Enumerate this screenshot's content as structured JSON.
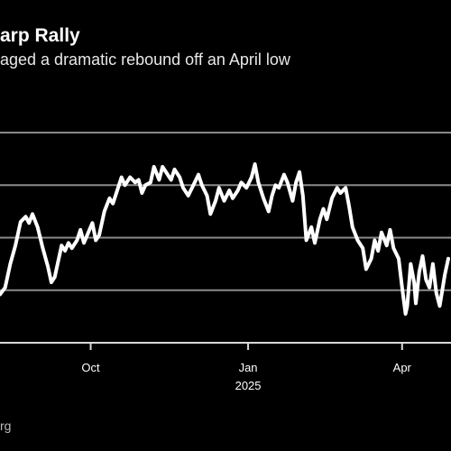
{
  "chart_data": {
    "type": "line",
    "title": "arp Rally",
    "subtitle": "aged a dramatic rebound off an April low",
    "xlabel": "",
    "ylabel": "",
    "grid": true,
    "legend": "none",
    "colors": {
      "background": "#000000",
      "line": "#ffffff",
      "grid": "#8a8a8a"
    },
    "ylim": [
      0,
      4
    ],
    "x_ticks": [
      {
        "label": "Oct",
        "sublabel": "",
        "date": "2024-10-01"
      },
      {
        "label": "Jan",
        "sublabel": "2025",
        "date": "2025-01-01"
      },
      {
        "label": "Apr",
        "sublabel": "",
        "date": "2025-04-01"
      }
    ],
    "xlim": [
      "2024-08-09",
      "2025-04-28"
    ],
    "series": [
      {
        "values": [
          [
            "2024-08-09",
            0.92
          ],
          [
            "2024-08-12",
            1.05
          ],
          [
            "2024-08-15",
            1.5
          ],
          [
            "2024-08-18",
            1.85
          ],
          [
            "2024-08-21",
            2.3
          ],
          [
            "2024-08-24",
            2.4
          ],
          [
            "2024-08-26",
            2.28
          ],
          [
            "2024-08-28",
            2.45
          ],
          [
            "2024-08-31",
            2.2
          ],
          [
            "2024-09-03",
            1.8
          ],
          [
            "2024-09-06",
            1.45
          ],
          [
            "2024-09-08",
            1.15
          ],
          [
            "2024-09-10",
            1.25
          ],
          [
            "2024-09-12",
            1.55
          ],
          [
            "2024-09-14",
            1.85
          ],
          [
            "2024-09-16",
            1.75
          ],
          [
            "2024-09-18",
            1.9
          ],
          [
            "2024-09-20",
            1.8
          ],
          [
            "2024-09-23",
            1.95
          ],
          [
            "2024-09-25",
            2.15
          ],
          [
            "2024-09-27",
            1.9
          ],
          [
            "2024-09-29",
            2.05
          ],
          [
            "2024-10-02",
            2.28
          ],
          [
            "2024-10-04",
            1.95
          ],
          [
            "2024-10-06",
            2.05
          ],
          [
            "2024-10-09",
            2.5
          ],
          [
            "2024-10-12",
            2.75
          ],
          [
            "2024-10-14",
            2.65
          ],
          [
            "2024-10-17",
            2.95
          ],
          [
            "2024-10-19",
            3.15
          ],
          [
            "2024-10-21",
            3.0
          ],
          [
            "2024-10-24",
            3.15
          ],
          [
            "2024-10-27",
            3.05
          ],
          [
            "2024-10-29",
            3.1
          ],
          [
            "2024-10-31",
            2.85
          ],
          [
            "2024-11-02",
            3.0
          ],
          [
            "2024-11-05",
            3.05
          ],
          [
            "2024-11-07",
            3.35
          ],
          [
            "2024-11-10",
            3.1
          ],
          [
            "2024-11-12",
            3.35
          ],
          [
            "2024-11-14",
            3.25
          ],
          [
            "2024-11-17",
            3.1
          ],
          [
            "2024-11-19",
            3.3
          ],
          [
            "2024-11-22",
            3.15
          ],
          [
            "2024-11-24",
            2.95
          ],
          [
            "2024-11-27",
            2.8
          ],
          [
            "2024-11-30",
            3.0
          ],
          [
            "2024-12-03",
            3.2
          ],
          [
            "2024-12-05",
            3.0
          ],
          [
            "2024-12-08",
            2.8
          ],
          [
            "2024-12-10",
            2.45
          ],
          [
            "2024-12-13",
            2.7
          ],
          [
            "2024-12-15",
            2.95
          ],
          [
            "2024-12-18",
            2.7
          ],
          [
            "2024-12-21",
            2.9
          ],
          [
            "2024-12-23",
            2.75
          ],
          [
            "2024-12-26",
            2.9
          ],
          [
            "2024-12-28",
            3.05
          ],
          [
            "2024-12-31",
            2.95
          ],
          [
            "2025-01-03",
            3.15
          ],
          [
            "2025-01-05",
            3.4
          ],
          [
            "2025-01-07",
            3.05
          ],
          [
            "2025-01-10",
            2.75
          ],
          [
            "2025-01-13",
            2.5
          ],
          [
            "2025-01-15",
            2.8
          ],
          [
            "2025-01-17",
            3.0
          ],
          [
            "2025-01-19",
            2.95
          ],
          [
            "2025-01-22",
            3.2
          ],
          [
            "2025-01-24",
            3.05
          ],
          [
            "2025-01-27",
            2.7
          ],
          [
            "2025-01-29",
            3.05
          ],
          [
            "2025-01-31",
            3.25
          ],
          [
            "2025-02-02",
            2.8
          ],
          [
            "2025-02-04",
            1.95
          ],
          [
            "2025-02-07",
            2.2
          ],
          [
            "2025-02-09",
            1.9
          ],
          [
            "2025-02-12",
            2.35
          ],
          [
            "2025-02-14",
            2.55
          ],
          [
            "2025-02-16",
            2.35
          ],
          [
            "2025-02-19",
            2.75
          ],
          [
            "2025-02-22",
            2.95
          ],
          [
            "2025-02-24",
            2.85
          ],
          [
            "2025-02-27",
            2.95
          ],
          [
            "2025-03-01",
            2.6
          ],
          [
            "2025-03-03",
            2.2
          ],
          [
            "2025-03-06",
            1.95
          ],
          [
            "2025-03-09",
            1.8
          ],
          [
            "2025-03-11",
            1.4
          ],
          [
            "2025-03-14",
            1.6
          ],
          [
            "2025-03-16",
            1.95
          ],
          [
            "2025-03-18",
            1.75
          ],
          [
            "2025-03-20",
            2.1
          ],
          [
            "2025-03-23",
            1.85
          ],
          [
            "2025-03-25",
            2.15
          ],
          [
            "2025-03-27",
            1.8
          ],
          [
            "2025-03-30",
            1.6
          ],
          [
            "2025-04-01",
            1.05
          ],
          [
            "2025-04-03",
            0.55
          ],
          [
            "2025-04-04",
            0.7
          ],
          [
            "2025-04-06",
            1.5
          ],
          [
            "2025-04-08",
            1.15
          ],
          [
            "2025-04-09",
            0.75
          ],
          [
            "2025-04-11",
            1.35
          ],
          [
            "2025-04-13",
            1.65
          ],
          [
            "2025-04-15",
            1.2
          ],
          [
            "2025-04-17",
            1.05
          ],
          [
            "2025-04-19",
            1.5
          ],
          [
            "2025-04-21",
            0.95
          ],
          [
            "2025-04-23",
            0.7
          ],
          [
            "2025-04-26",
            1.3
          ],
          [
            "2025-04-28",
            1.6
          ]
        ]
      }
    ]
  },
  "source_text": "rg"
}
